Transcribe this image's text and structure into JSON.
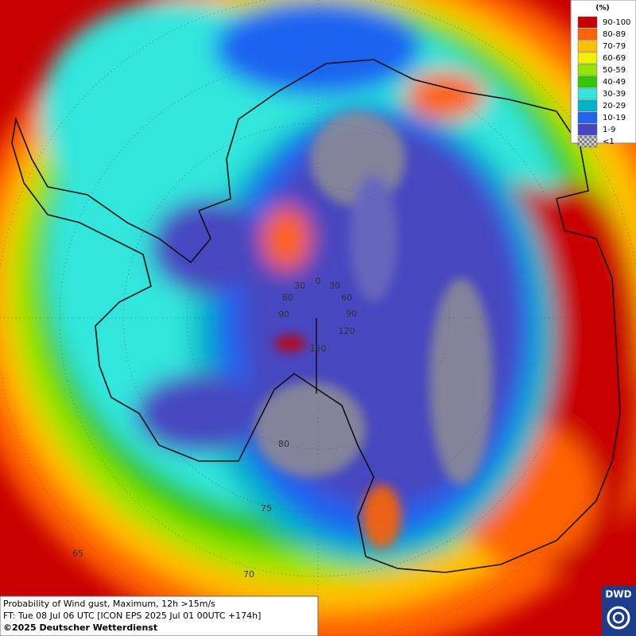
{
  "legend": {
    "title": "(%)",
    "items": [
      {
        "label": "90-100",
        "color": "#c80000"
      },
      {
        "label": "80-89",
        "color": "#ff6400"
      },
      {
        "label": "70-79",
        "color": "#ffc000"
      },
      {
        "label": "60-69",
        "color": "#f0f000"
      },
      {
        "label": "50-59",
        "color": "#96e600"
      },
      {
        "label": "40-49",
        "color": "#32c800"
      },
      {
        "label": "30-39",
        "color": "#32e6dc"
      },
      {
        "label": "20-29",
        "color": "#00b4c8"
      },
      {
        "label": "10-19",
        "color": "#1e64f0"
      },
      {
        "label": "1-9",
        "color": "#4646c0"
      },
      {
        "label": "<1",
        "color": "#a0a0a0",
        "pattern": "checker"
      }
    ]
  },
  "grid_labels": [
    "0",
    "30",
    "30",
    "60",
    "60",
    "90",
    "90",
    "120",
    "150",
    "80",
    "75",
    "70",
    "65"
  ],
  "caption": {
    "lines": [
      "Probability of Wind gust, Maximum, 12h >15m/s",
      "FT: Tue 08 Jul 06 UTC [ICON EPS 2025 Jul 01 00UTC +174h]",
      "©2025 Deutscher Wetterdienst"
    ]
  },
  "logo": "DWD"
}
